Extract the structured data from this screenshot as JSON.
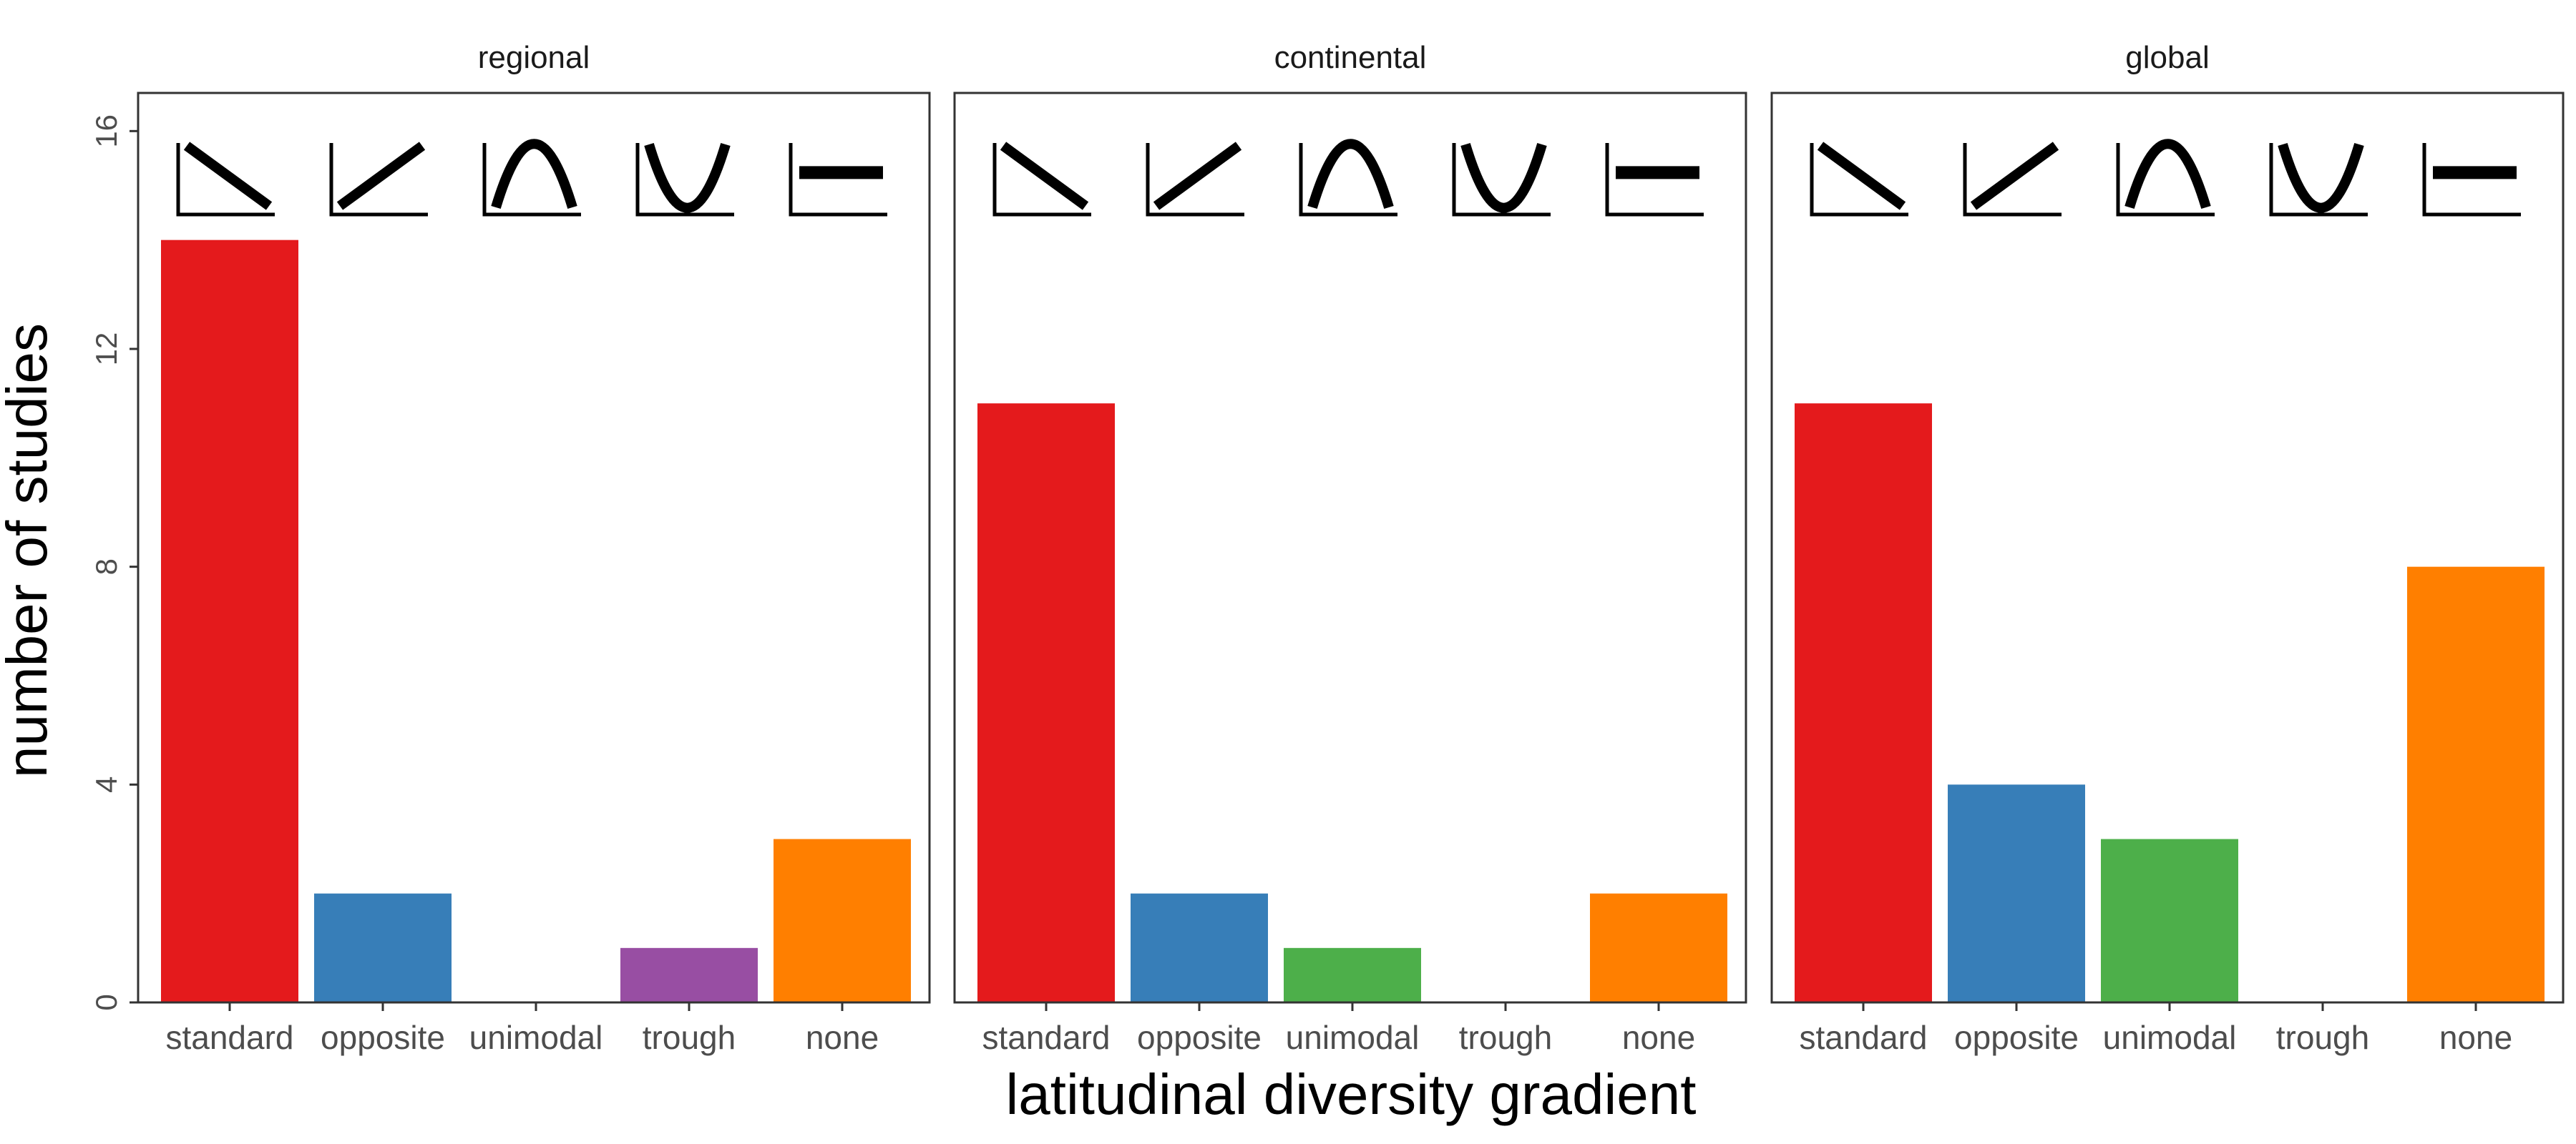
{
  "chart_data": {
    "type": "bar",
    "xlabel": "latitudinal diversity gradient",
    "ylabel": "number of studies",
    "ylim": [
      0,
      16.7
    ],
    "yticks": [
      0,
      4,
      8,
      12,
      16
    ],
    "grid": false,
    "legend": "none",
    "categories": [
      "standard",
      "opposite",
      "unimodal",
      "trough",
      "none"
    ],
    "category_icons": [
      "decreasing-line-icon",
      "increasing-line-icon",
      "hump-curve-icon",
      "trough-curve-icon",
      "flat-line-icon"
    ],
    "colors": {
      "standard": "#E41A1C",
      "opposite": "#377EB8",
      "unimodal": "#4DAF4A",
      "trough": "#984EA3",
      "none": "#FF7F00"
    },
    "panels": [
      {
        "title": "regional",
        "values": [
          14,
          2,
          0,
          1,
          3
        ]
      },
      {
        "title": "continental",
        "values": [
          11,
          2,
          1,
          0,
          2
        ]
      },
      {
        "title": "global",
        "values": [
          11,
          4,
          3,
          0,
          8
        ]
      }
    ]
  }
}
